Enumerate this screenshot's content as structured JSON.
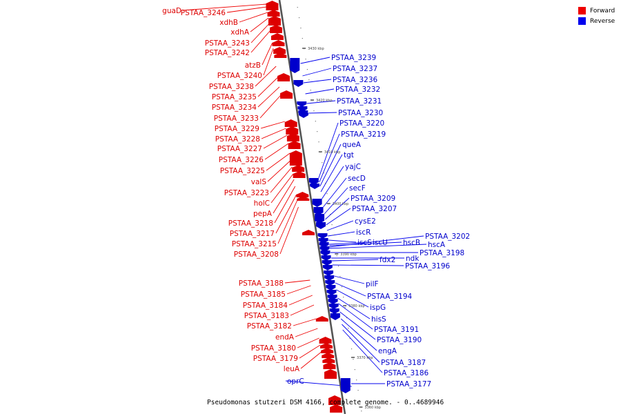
{
  "legend": {
    "forward_label": "Forward",
    "forward_color": "#ee0000",
    "reverse_label": "Reverse",
    "reverse_color": "#0000ee"
  },
  "caption": "Pseudomonas stutzeri DSM 4166, complete genome. - 0..4689946",
  "ticks": [
    "3430 kbp",
    "3420 kbp",
    "3410 kbp",
    "3400 kbp",
    "3390 kbp",
    "3380 kbp",
    "3370 kbp",
    "3360 kbp"
  ],
  "forward_genes": [
    "guaD",
    "PSTAA_3246",
    "xdhB",
    "xdhA",
    "PSTAA_3243",
    "PSTAA_3242",
    "atzB",
    "PSTAA_3240",
    "PSTAA_3238",
    "PSTAA_3235",
    "PSTAA_3234",
    "PSTAA_3233",
    "PSTAA_3229",
    "PSTAA_3228",
    "PSTAA_3227",
    "PSTAA_3226",
    "PSTAA_3225",
    "valS",
    "PSTAA_3223",
    "holC",
    "pepA",
    "PSTAA_3218",
    "PSTAA_3217",
    "PSTAA_3215",
    "PSTAA_3208",
    "PSTAA_3188",
    "PSTAA_3185",
    "PSTAA_3184",
    "PSTAA_3183",
    "PSTAA_3182",
    "endA",
    "PSTAA_3180",
    "PSTAA_3179",
    "leuA"
  ],
  "reverse_genes": [
    "PSTAA_3239",
    "PSTAA_3237",
    "PSTAA_3236",
    "PSTAA_3232",
    "PSTAA_3231",
    "PSTAA_3230",
    "PSTAA_3220",
    "PSTAA_3219",
    "queA",
    "tgt",
    "yajC",
    "secD",
    "secF",
    "PSTAA_3209",
    "PSTAA_3207",
    "cysE2",
    "iscR",
    "iscS",
    "iscU",
    "hscB",
    "PSTAA_3202",
    "hscA",
    "PSTAA_3198",
    "ndk",
    "fdx2",
    "PSTAA_3196",
    "pilF",
    "PSTAA_3194",
    "ispG",
    "hisS",
    "PSTAA_3191",
    "PSTAA_3190",
    "engA",
    "PSTAA_3187",
    "PSTAA_3186",
    "PSTAA_3177",
    "oprC"
  ]
}
